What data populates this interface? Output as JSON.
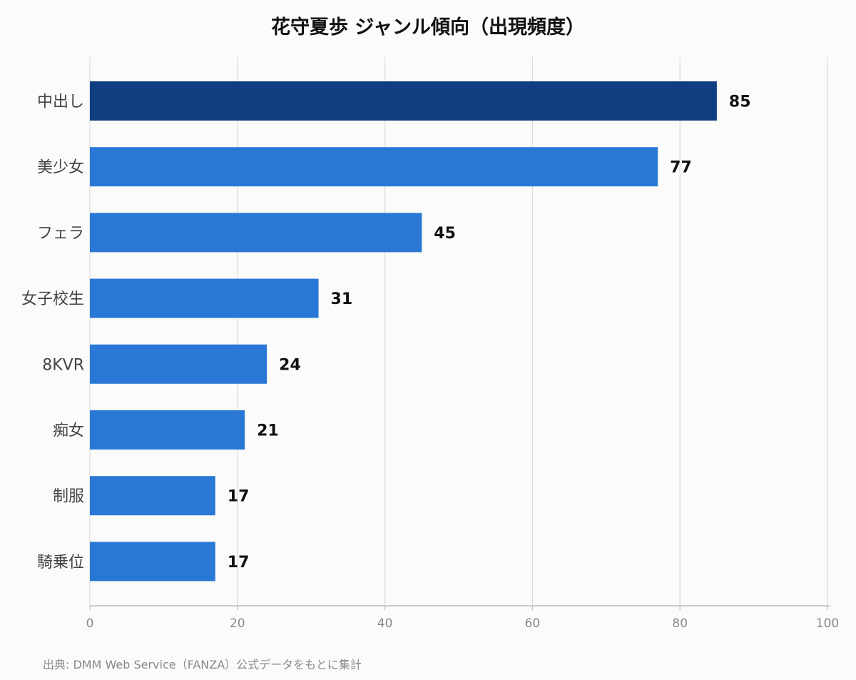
{
  "title": "花守夏歩 ジャンル傾向（出現頻度）",
  "source_note": "出典: DMM Web Service（FANZA）公式データをもとに集計",
  "colors": {
    "highlight_bar": "#0f3f80",
    "bar": "#2a78d6",
    "grid": "#dcdcdc",
    "axis": "#bdbdbd",
    "tick_text": "#888888",
    "category_text": "#444444",
    "value_text": "#111111"
  },
  "chart_data": {
    "type": "bar",
    "orientation": "horizontal",
    "categories": [
      "中出し",
      "美少女",
      "フェラ",
      "女子校生",
      "8KVR",
      "痴女",
      "制服",
      "騎乗位"
    ],
    "values": [
      85,
      77,
      45,
      31,
      24,
      21,
      17,
      17
    ],
    "data_labels": [
      "85",
      "77",
      "45",
      "31",
      "24",
      "21",
      "17",
      "17"
    ],
    "highlighted_index": 0,
    "xlim": [
      0,
      100
    ],
    "xticks": [
      "0",
      "20",
      "40",
      "60",
      "80",
      "100"
    ],
    "grid": true,
    "legend": "none"
  }
}
